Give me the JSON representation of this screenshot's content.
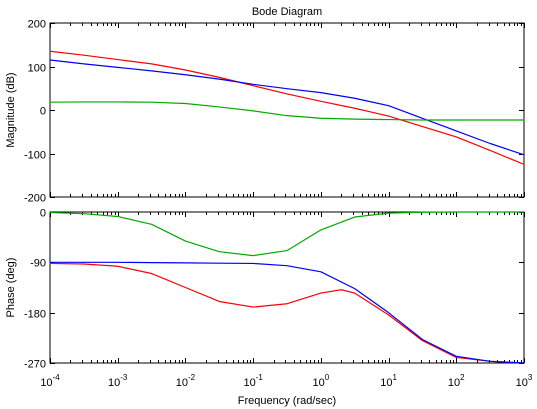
{
  "chart_data": {
    "type": "line",
    "title": "Bode Diagram",
    "xlabel": "Frequency  (rad/sec)",
    "x_scale": "log",
    "xlim": [
      0.0001,
      1000
    ],
    "x_ticks": [
      {
        "value": 0.0001,
        "base": "10",
        "exp": "-4"
      },
      {
        "value": 0.001,
        "base": "10",
        "exp": "-3"
      },
      {
        "value": 0.01,
        "base": "10",
        "exp": "-2"
      },
      {
        "value": 0.1,
        "base": "10",
        "exp": "-1"
      },
      {
        "value": 1,
        "base": "10",
        "exp": "0"
      },
      {
        "value": 10,
        "base": "10",
        "exp": "1"
      },
      {
        "value": 100,
        "base": "10",
        "exp": "2"
      },
      {
        "value": 1000,
        "base": "10",
        "exp": "3"
      }
    ],
    "grid": false,
    "panels": [
      {
        "id": "magnitude",
        "ylabel": "Magnitude (dB)",
        "ylim": [
          -200,
          200
        ],
        "y_ticks": [
          {
            "value": 200,
            "label": "200"
          },
          {
            "value": 100,
            "label": "100"
          },
          {
            "value": 0,
            "label": "0"
          },
          {
            "value": -100,
            "label": "-100"
          },
          {
            "value": -200,
            "label": "-200"
          }
        ],
        "series": [
          {
            "color": "#ff0000",
            "points": [
              [
                0.0001,
                135
              ],
              [
                0.000316,
                126
              ],
              [
                0.001,
                116
              ],
              [
                0.00316,
                106
              ],
              [
                0.01,
                92
              ],
              [
                0.0316,
                75
              ],
              [
                0.1,
                56
              ],
              [
                0.316,
                37
              ],
              [
                1,
                20
              ],
              [
                3.16,
                4
              ],
              [
                10,
                -14
              ],
              [
                31.6,
                -38
              ],
              [
                100,
                -62
              ],
              [
                316,
                -93
              ],
              [
                1000,
                -125
              ]
            ]
          },
          {
            "color": "#0000ff",
            "points": [
              [
                0.0001,
                115
              ],
              [
                0.000316,
                106
              ],
              [
                0.001,
                98
              ],
              [
                0.00316,
                90
              ],
              [
                0.01,
                81
              ],
              [
                0.0316,
                71
              ],
              [
                0.1,
                59
              ],
              [
                0.316,
                49
              ],
              [
                1,
                40
              ],
              [
                3.16,
                27
              ],
              [
                10,
                10
              ],
              [
                31.6,
                -19
              ],
              [
                100,
                -48
              ],
              [
                316,
                -77
              ],
              [
                1000,
                -103
              ]
            ]
          },
          {
            "color": "#00aa00",
            "points": [
              [
                0.0001,
                18
              ],
              [
                0.000316,
                18.5
              ],
              [
                0.001,
                18.5
              ],
              [
                0.00316,
                18
              ],
              [
                0.01,
                15
              ],
              [
                0.0316,
                7
              ],
              [
                0.1,
                -2
              ],
              [
                0.316,
                -13
              ],
              [
                1,
                -19
              ],
              [
                3.16,
                -21
              ],
              [
                10,
                -22
              ],
              [
                31.6,
                -23
              ],
              [
                100,
                -23
              ],
              [
                316,
                -23
              ],
              [
                1000,
                -23
              ]
            ]
          }
        ]
      },
      {
        "id": "phase",
        "ylabel": "Phase (deg)",
        "ylim": [
          -270,
          0
        ],
        "y_ticks": [
          {
            "value": 0,
            "label": "0"
          },
          {
            "value": -90,
            "label": "-90"
          },
          {
            "value": -180,
            "label": "-180"
          },
          {
            "value": -270,
            "label": "-270"
          }
        ],
        "series": [
          {
            "color": "#ff0000",
            "points": [
              [
                0.0001,
                -92
              ],
              [
                0.000316,
                -93
              ],
              [
                0.001,
                -97
              ],
              [
                0.00316,
                -110
              ],
              [
                0.01,
                -135
              ],
              [
                0.0316,
                -160
              ],
              [
                0.1,
                -170
              ],
              [
                0.316,
                -164
              ],
              [
                1,
                -145
              ],
              [
                2,
                -139
              ],
              [
                3.16,
                -145
              ],
              [
                10,
                -184
              ],
              [
                31.6,
                -230
              ],
              [
                100,
                -260
              ],
              [
                316,
                -267
              ],
              [
                1000,
                -270
              ]
            ]
          },
          {
            "color": "#0000ff",
            "points": [
              [
                0.0001,
                -90
              ],
              [
                0.000316,
                -90
              ],
              [
                0.001,
                -90
              ],
              [
                0.00316,
                -90.5
              ],
              [
                0.01,
                -91
              ],
              [
                0.0316,
                -91.5
              ],
              [
                0.1,
                -92
              ],
              [
                0.316,
                -96
              ],
              [
                1,
                -107
              ],
              [
                3.16,
                -137
              ],
              [
                10,
                -180
              ],
              [
                31.6,
                -228
              ],
              [
                100,
                -258
              ],
              [
                316,
                -267
              ],
              [
                1000,
                -270
              ]
            ]
          },
          {
            "color": "#00aa00",
            "points": [
              [
                0.0001,
                -1
              ],
              [
                0.000316,
                -3
              ],
              [
                0.001,
                -8
              ],
              [
                0.00316,
                -22
              ],
              [
                0.01,
                -52
              ],
              [
                0.0316,
                -71
              ],
              [
                0.1,
                -78
              ],
              [
                0.316,
                -69
              ],
              [
                1,
                -32
              ],
              [
                3.16,
                -9
              ],
              [
                10,
                -2
              ],
              [
                31.6,
                -0.5
              ],
              [
                100,
                0
              ],
              [
                316,
                0
              ],
              [
                1000,
                0
              ]
            ]
          }
        ]
      }
    ]
  }
}
